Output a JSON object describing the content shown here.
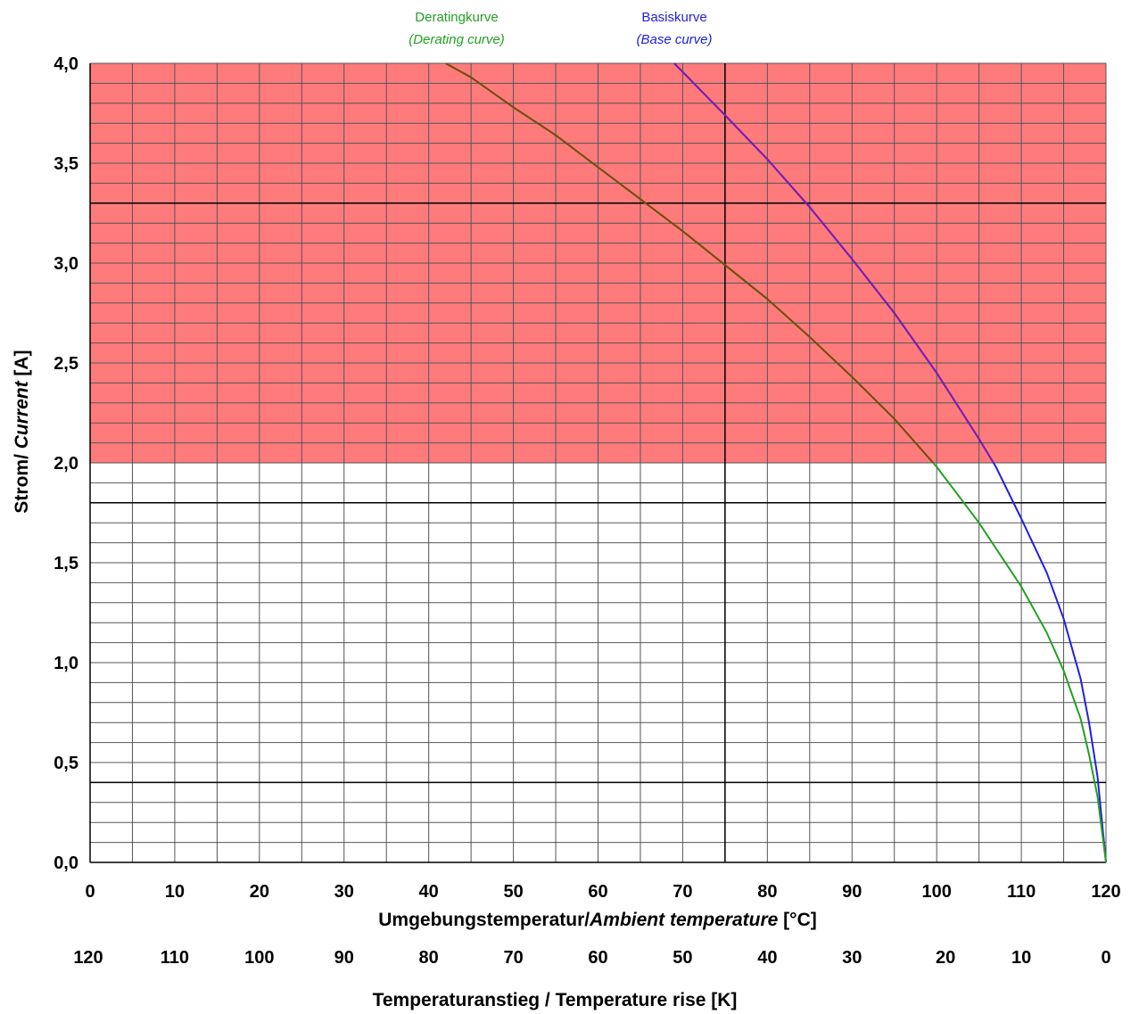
{
  "chart_data": {
    "type": "line",
    "x_axis": {
      "title_de": "Umgebungstemperatur/",
      "title_en": "Ambient temperature",
      "unit": " [°C]",
      "range": [
        0,
        120
      ],
      "ticks": [
        "0",
        "10",
        "20",
        "30",
        "40",
        "50",
        "60",
        "70",
        "80",
        "90",
        "100",
        "110",
        "120"
      ]
    },
    "secondary_x_axis": {
      "title": "Temperaturanstieg / Temperature rise [K]",
      "ticks": [
        "120",
        "110",
        "100",
        "90",
        "80",
        "70",
        "60",
        "50",
        "40",
        "30",
        "20",
        "10",
        "0"
      ]
    },
    "y_axis": {
      "title_de": "Strom/ ",
      "title_en": "Current",
      "unit": " [A]",
      "range": [
        0,
        4
      ],
      "ticks": [
        "0,0",
        "0,5",
        "1,0",
        "1,5",
        "2,0",
        "2,5",
        "3,0",
        "3,5",
        "4,0"
      ]
    },
    "legend": {
      "derating": {
        "label": "Deratingkurve",
        "label_en": "(Derating curve)",
        "color": "#22a022"
      },
      "base": {
        "label": "Basiskurve",
        "label_en": "(Base curve)",
        "color": "#2020e0"
      }
    },
    "shaded_region": {
      "y_from": 2.0,
      "y_to": 4.0,
      "color": "#ff7b7b"
    },
    "reference_lines": {
      "x": [
        75
      ],
      "y": [
        0.4,
        1.8,
        3.3
      ]
    },
    "grid": true,
    "series": [
      {
        "name": "Basiskurve",
        "color": "#2020e0",
        "x": [
          69,
          75,
          80,
          85,
          90,
          95,
          100,
          105,
          107,
          110,
          113,
          115,
          117,
          118,
          119,
          120
        ],
        "y": [
          4.0,
          3.74,
          3.52,
          3.28,
          3.02,
          2.75,
          2.45,
          2.12,
          1.98,
          1.72,
          1.45,
          1.22,
          0.92,
          0.7,
          0.43,
          0.0
        ]
      },
      {
        "name": "Deratingkurve",
        "color": "#22a022",
        "x": [
          42,
          45,
          50,
          55,
          60,
          65,
          70,
          75,
          80,
          85,
          90,
          95,
          100,
          105,
          110,
          113,
          115,
          117,
          118,
          119,
          120
        ],
        "y": [
          4.0,
          3.93,
          3.78,
          3.64,
          3.48,
          3.32,
          3.16,
          2.99,
          2.82,
          2.63,
          2.43,
          2.22,
          1.98,
          1.7,
          1.38,
          1.15,
          0.96,
          0.72,
          0.54,
          0.33,
          0.0
        ]
      }
    ]
  }
}
